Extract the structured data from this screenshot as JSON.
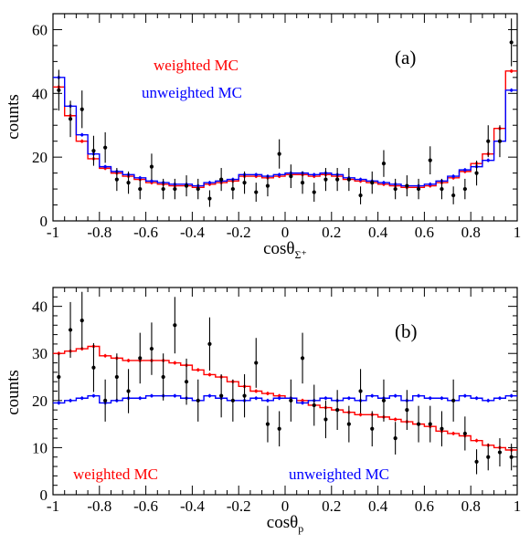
{
  "chart_data": [
    {
      "type": "line",
      "panel_label": "(a)",
      "xlabel": "cosθ",
      "xlabel_sub": "Σ⁺",
      "ylabel": "counts",
      "xlim": [
        -1,
        1
      ],
      "ylim": [
        0,
        65
      ],
      "xticks": [
        "-1",
        "-0.8",
        "-0.6",
        "-0.4",
        "-0.2",
        "0",
        "0.2",
        "0.4",
        "0.6",
        "0.8",
        "1"
      ],
      "yticks": [
        "0",
        "20",
        "40",
        "60"
      ],
      "legend_placement": "top-left",
      "bin_edges": [
        -1.0,
        -0.95,
        -0.9,
        -0.85,
        -0.8,
        -0.75,
        -0.7,
        -0.65,
        -0.6,
        -0.55,
        -0.5,
        -0.45,
        -0.4,
        -0.35,
        -0.3,
        -0.25,
        -0.2,
        -0.15,
        -0.1,
        -0.05,
        0.0,
        0.05,
        0.1,
        0.15,
        0.2,
        0.25,
        0.3,
        0.35,
        0.4,
        0.45,
        0.5,
        0.55,
        0.6,
        0.65,
        0.7,
        0.75,
        0.8,
        0.85,
        0.9,
        0.95,
        1.0
      ],
      "series": [
        {
          "name": "weighted MC",
          "color": "#ff0000",
          "style": "step",
          "values": [
            42,
            33,
            25,
            19.5,
            16.5,
            15,
            14,
            13,
            12,
            11.5,
            11,
            11,
            10.5,
            11.5,
            12,
            12.5,
            14,
            14,
            13.5,
            14,
            14.5,
            14.5,
            14,
            14.5,
            14,
            13,
            12.5,
            12,
            11.5,
            11,
            10.5,
            10.5,
            11,
            12,
            13.5,
            15.5,
            18,
            21,
            29,
            47
          ]
        },
        {
          "name": "unweighted MC",
          "color": "#0000ff",
          "style": "step",
          "values": [
            45,
            36,
            27,
            21,
            17,
            15.5,
            14.5,
            13.5,
            12.5,
            12,
            11.5,
            11.5,
            11,
            12,
            12.5,
            13,
            14.5,
            14.5,
            14,
            14.5,
            15,
            15,
            14.5,
            15,
            14.5,
            13.5,
            13,
            12.5,
            12,
            11.5,
            11,
            11,
            11.5,
            12.5,
            14,
            16,
            17,
            19,
            25,
            41
          ]
        },
        {
          "name": "",
          "color": "#000000",
          "style": "points",
          "x": [
            -0.975,
            -0.925,
            -0.875,
            -0.825,
            -0.775,
            -0.725,
            -0.675,
            -0.625,
            -0.575,
            -0.525,
            -0.475,
            -0.425,
            -0.375,
            -0.325,
            -0.275,
            -0.225,
            -0.175,
            -0.125,
            -0.075,
            -0.025,
            0.025,
            0.075,
            0.125,
            0.175,
            0.225,
            0.275,
            0.325,
            0.375,
            0.425,
            0.475,
            0.525,
            0.575,
            0.625,
            0.675,
            0.725,
            0.775,
            0.825,
            0.875,
            0.925,
            0.975
          ],
          "values": [
            41,
            32,
            35,
            22,
            23,
            13,
            12,
            10,
            17,
            10,
            10,
            11,
            10,
            7,
            13,
            10,
            12,
            9,
            11,
            21,
            14,
            12,
            9,
            13,
            13,
            13,
            8,
            12,
            18,
            10,
            11,
            10,
            19,
            10,
            8,
            10,
            15,
            25,
            25,
            56
          ],
          "errors": [
            6.4,
            5.7,
            5.9,
            4.7,
            4.8,
            3.6,
            3.5,
            3.2,
            4.1,
            3.2,
            3.2,
            3.3,
            3.2,
            2.6,
            3.6,
            3.2,
            3.5,
            3.0,
            3.3,
            4.6,
            3.7,
            3.5,
            3.0,
            3.6,
            3.6,
            3.6,
            2.8,
            3.5,
            4.2,
            3.2,
            3.3,
            3.2,
            4.4,
            3.2,
            2.8,
            3.2,
            3.9,
            5.0,
            5.0,
            7.5
          ]
        }
      ]
    },
    {
      "type": "line",
      "panel_label": "(b)",
      "xlabel": "cosθ",
      "xlabel_sub": "p",
      "ylabel": "counts",
      "xlim": [
        -1,
        1
      ],
      "ylim": [
        0,
        44
      ],
      "xticks": [
        "-1",
        "-0.8",
        "-0.6",
        "-0.4",
        "-0.2",
        "0",
        "0.2",
        "0.4",
        "0.6",
        "0.8",
        "1"
      ],
      "yticks": [
        "0",
        "10",
        "20",
        "30",
        "40"
      ],
      "legend_placement": "bottom",
      "bin_edges": [
        -1.0,
        -0.95,
        -0.9,
        -0.85,
        -0.8,
        -0.75,
        -0.7,
        -0.65,
        -0.6,
        -0.55,
        -0.5,
        -0.45,
        -0.4,
        -0.35,
        -0.3,
        -0.25,
        -0.2,
        -0.15,
        -0.1,
        -0.05,
        0.0,
        0.05,
        0.1,
        0.15,
        0.2,
        0.25,
        0.3,
        0.35,
        0.4,
        0.45,
        0.5,
        0.55,
        0.6,
        0.65,
        0.7,
        0.75,
        0.8,
        0.85,
        0.9,
        0.95,
        1.0
      ],
      "series": [
        {
          "name": "weighted MC",
          "color": "#ff0000",
          "style": "step",
          "values": [
            30,
            30.5,
            31,
            31.5,
            29.5,
            29,
            28.5,
            28.5,
            28.5,
            28.5,
            28,
            27.5,
            26.5,
            25.5,
            25,
            24,
            23,
            22,
            21.5,
            21,
            20.5,
            20,
            19,
            18.5,
            18,
            17.5,
            17,
            17,
            16.5,
            16,
            15.5,
            15,
            14.5,
            13.5,
            13,
            12.5,
            11.5,
            10.5,
            10,
            9.5
          ]
        },
        {
          "name": "unweighted MC",
          "color": "#0000ff",
          "style": "step",
          "values": [
            19.5,
            20,
            20.5,
            21,
            19.5,
            20,
            20.5,
            20.5,
            21,
            21,
            21,
            20.5,
            20,
            21,
            20.5,
            20,
            20,
            20.5,
            20,
            20.5,
            20.5,
            19.5,
            20,
            20.5,
            20,
            20.5,
            20,
            21,
            20.5,
            21,
            20,
            21,
            20.5,
            20.5,
            20,
            21,
            20.5,
            20,
            20.5,
            21
          ]
        },
        {
          "name": "",
          "color": "#000000",
          "style": "points",
          "x": [
            -0.975,
            -0.925,
            -0.875,
            -0.825,
            -0.775,
            -0.725,
            -0.675,
            -0.625,
            -0.575,
            -0.525,
            -0.475,
            -0.425,
            -0.375,
            -0.325,
            -0.275,
            -0.225,
            -0.175,
            -0.125,
            -0.075,
            -0.025,
            0.025,
            0.075,
            0.125,
            0.175,
            0.225,
            0.275,
            0.325,
            0.375,
            0.425,
            0.475,
            0.525,
            0.575,
            0.625,
            0.675,
            0.725,
            0.775,
            0.825,
            0.875,
            0.925,
            0.975
          ],
          "values": [
            25,
            35,
            37,
            27,
            20,
            25,
            22,
            29,
            31,
            25,
            36,
            24,
            20,
            32,
            21,
            20,
            21,
            28,
            15,
            14,
            20,
            29,
            19,
            16,
            18,
            15,
            22,
            14,
            20,
            12,
            18,
            15,
            15,
            14,
            20,
            13,
            7,
            8,
            9,
            8
          ]
        }
      ]
    }
  ]
}
